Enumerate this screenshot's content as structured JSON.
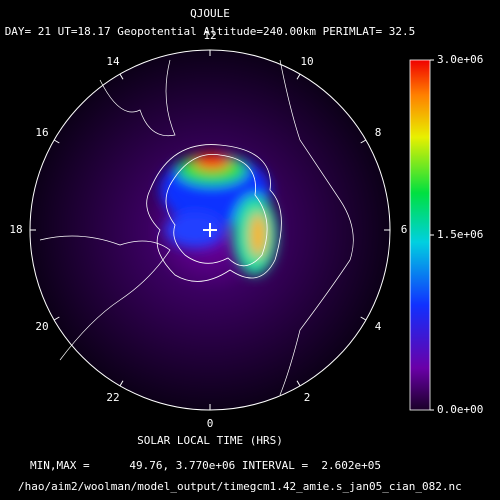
{
  "header": {
    "title": "QJOULE",
    "subtitle": "DAY= 21 UT=18.17 Geopotential Altitude=240.00km PERIMLAT= 32.5"
  },
  "dial": {
    "hours": [
      "12",
      "10",
      "8",
      "6",
      "4",
      "2",
      "0",
      "22",
      "20",
      "18",
      "16",
      "14"
    ],
    "xlabel": "SOLAR LOCAL TIME (HRS)"
  },
  "colorbar": {
    "lim": [
      0,
      3000000
    ],
    "ticks": [
      {
        "value": 0,
        "label": "0.0e+00"
      },
      {
        "value": 1500000,
        "label": "1.5e+06"
      },
      {
        "value": 3000000,
        "label": "3.0e+06"
      }
    ]
  },
  "footer": {
    "minmax": "MIN,MAX =      49.76, 3.770e+06 INTERVAL =  2.602e+05",
    "path": "/hao/aim2/woolman/model_output/timegcm1.42_amie.s_jan05_cian_082.nc"
  }
}
